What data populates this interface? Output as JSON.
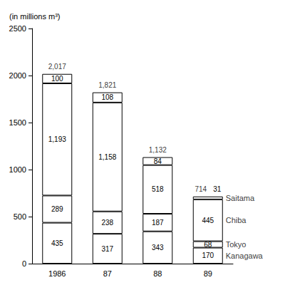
{
  "chart_data": {
    "type": "bar",
    "stacked": true,
    "data_labels": true,
    "grid": false,
    "y_label": "(in millions m³)",
    "categories": [
      "1986",
      "87",
      "88",
      "89"
    ],
    "series": [
      {
        "name": "Kanagawa",
        "color": "#ffffff",
        "values": [
          435,
          317,
          343,
          170
        ]
      },
      {
        "name": "Tokyo",
        "color": "#ffffff",
        "values": [
          289,
          238,
          187,
          68
        ]
      },
      {
        "name": "Chiba",
        "color": "#ffffff",
        "values": [
          1193,
          1158,
          518,
          445
        ],
        "value_labels": [
          "1,193",
          "1,158",
          "518",
          "445"
        ]
      },
      {
        "name": "Saitama",
        "color": "#ffffff",
        "values": [
          100,
          108,
          84,
          31
        ]
      }
    ],
    "totals": [
      2017,
      1821,
      1132,
      714
    ],
    "total_labels": [
      "2,017",
      "1,821",
      "1,132",
      "714"
    ],
    "ylim": [
      0,
      2500
    ],
    "yticks": [
      0,
      500,
      1000,
      1500,
      2000,
      2500
    ]
  }
}
